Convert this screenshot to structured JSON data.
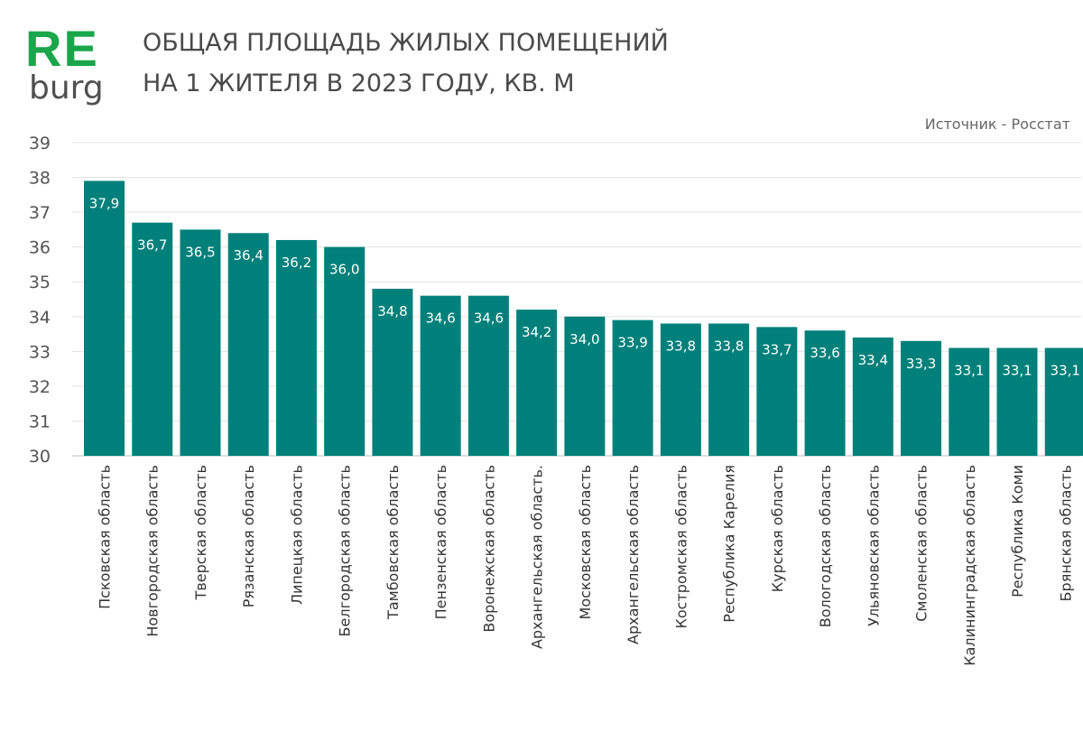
{
  "logo": {
    "re": "RE",
    "burg": "burg",
    "re_color": "#1aa64a"
  },
  "header": {
    "title_line1": "ОБЩАЯ ПЛОЩАДЬ ЖИЛЫХ ПОМЕЩЕНИЙ",
    "title_line2": "НА 1 ЖИТЕЛЯ В 2023 ГОДУ, КВ. М",
    "source": "Источник - Росстат"
  },
  "chart_data": {
    "type": "bar",
    "title": "ОБЩАЯ ПЛОЩАДЬ ЖИЛЫХ ПОМЕЩЕНИЙ НА 1 ЖИТЕЛЯ В 2023 ГОДУ, КВ. М",
    "categories": [
      "Псковская область",
      "Новгородская область",
      "Тверская область",
      "Рязанская область",
      "Липецкая область",
      "Белгородская область",
      "Тамбовская область",
      "Пензенская область",
      "Воронежская область",
      "Архангельская область.",
      "Московская область",
      "Архангельская область",
      "Костромская область",
      "Республика Карелия",
      "Курская область",
      "Вологодская область",
      "Ульяновская область",
      "Смоленская область",
      "Калининградская область",
      "Республика Коми",
      "Брянская область"
    ],
    "values": [
      37.9,
      36.7,
      36.5,
      36.4,
      36.2,
      36.0,
      34.8,
      34.6,
      34.6,
      34.2,
      34.0,
      33.9,
      33.8,
      33.8,
      33.7,
      33.6,
      33.4,
      33.3,
      33.1,
      33.1,
      33.1
    ],
    "data_labels": [
      "37,9",
      "36,7",
      "36,5",
      "36,4",
      "36,2",
      "36,0",
      "34,8",
      "34,6",
      "34,6",
      "34,2",
      "34,0",
      "33,9",
      "33,8",
      "33,8",
      "33,7",
      "33,6",
      "33,4",
      "33,3",
      "33,1",
      "33,1",
      "33,1"
    ],
    "ylim": [
      30,
      39
    ],
    "yticks": [
      30,
      31,
      32,
      33,
      34,
      35,
      36,
      37,
      38,
      39
    ],
    "grid": true,
    "bar_color": "#00807a",
    "label_color": "#ffffff"
  }
}
